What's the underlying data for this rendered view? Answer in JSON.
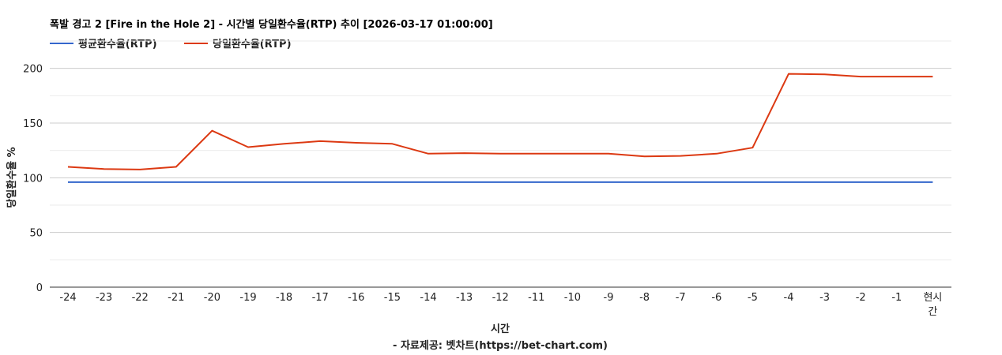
{
  "chart_data": {
    "type": "line",
    "title": "폭발 경고 2 [Fire in the Hole 2] - 시간별 당일환수율(RTP) 추이 [2026-03-17 01:00:00]",
    "xlabel": "시간",
    "ylabel": "당일환수율 %",
    "footer": "- 자료제공: 벳차트(https://bet-chart.com)",
    "categories": [
      "-24",
      "-23",
      "-22",
      "-21",
      "-20",
      "-19",
      "-18",
      "-17",
      "-16",
      "-15",
      "-14",
      "-13",
      "-12",
      "-11",
      "-10",
      "-9",
      "-8",
      "-7",
      "-6",
      "-5",
      "-4",
      "-3",
      "-2",
      "-1",
      "현시간"
    ],
    "last_category_lines": [
      "현시",
      "간"
    ],
    "yticks": [
      0,
      50,
      100,
      150,
      200
    ],
    "ylim": [
      0,
      225
    ],
    "grid": true,
    "legend_position": "top-left",
    "series": [
      {
        "name": "평균환수율(RTP)",
        "color": "#3366cc",
        "values": [
          96,
          96,
          96,
          96,
          96,
          96,
          96,
          96,
          96,
          96,
          96,
          96,
          96,
          96,
          96,
          96,
          96,
          96,
          96,
          96,
          96,
          96,
          96,
          96,
          96
        ]
      },
      {
        "name": "당일환수율(RTP)",
        "color": "#dc3912",
        "values": [
          110,
          108,
          107.5,
          110,
          143,
          128,
          131,
          133.5,
          132,
          131,
          122,
          122.5,
          122,
          122,
          122,
          122,
          119.5,
          120,
          122,
          127.5,
          195,
          194.5,
          192.5,
          192.5,
          192.5
        ]
      }
    ]
  }
}
